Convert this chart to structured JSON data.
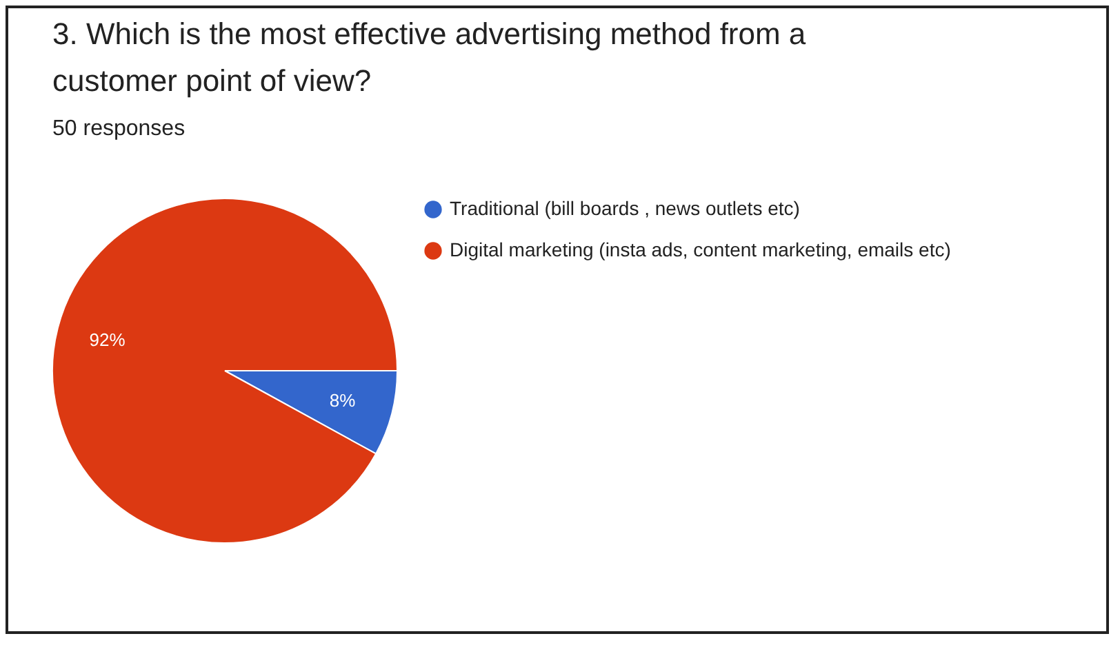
{
  "chart_data": {
    "type": "pie",
    "title": "3. Which is the most effective advertising method from a customer point of view?",
    "subtitle": "50 responses",
    "categories": [
      "Traditional (bill boards , news outlets etc)",
      "Digital marketing (insta ads, content marketing, emails etc)"
    ],
    "values": [
      8,
      92
    ],
    "colors": [
      "#3366cc",
      "#dc3912"
    ],
    "value_labels": [
      "8%",
      "92%"
    ],
    "legend": "right"
  }
}
